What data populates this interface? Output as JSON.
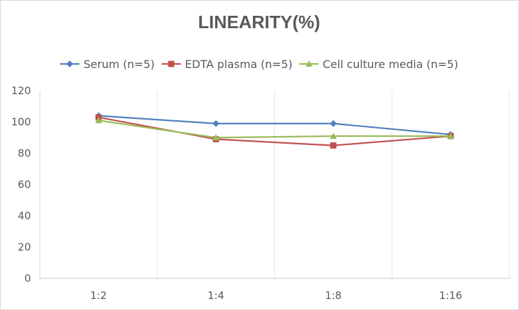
{
  "chart_data": {
    "type": "line",
    "title": "LINEARITY(%)",
    "xlabel": "",
    "ylabel": "",
    "categories": [
      "1:2",
      "1:4",
      "1:8",
      "1:16"
    ],
    "ylim": [
      0,
      120
    ],
    "yticks": [
      0,
      20,
      40,
      60,
      80,
      100,
      120
    ],
    "grid": "vertical",
    "legend_position": "top",
    "series": [
      {
        "name": "Serum (n=5)",
        "values": [
          104,
          99,
          99,
          92
        ],
        "color": "#4f81bd",
        "marker": "diamond"
      },
      {
        "name": "EDTA plasma (n=5)",
        "values": [
          103,
          89,
          85,
          91
        ],
        "color": "#c0504d",
        "marker": "square"
      },
      {
        "name": "Cell culture media (n=5)",
        "values": [
          101,
          90,
          91,
          91
        ],
        "color": "#9bbb59",
        "marker": "triangle"
      }
    ]
  }
}
